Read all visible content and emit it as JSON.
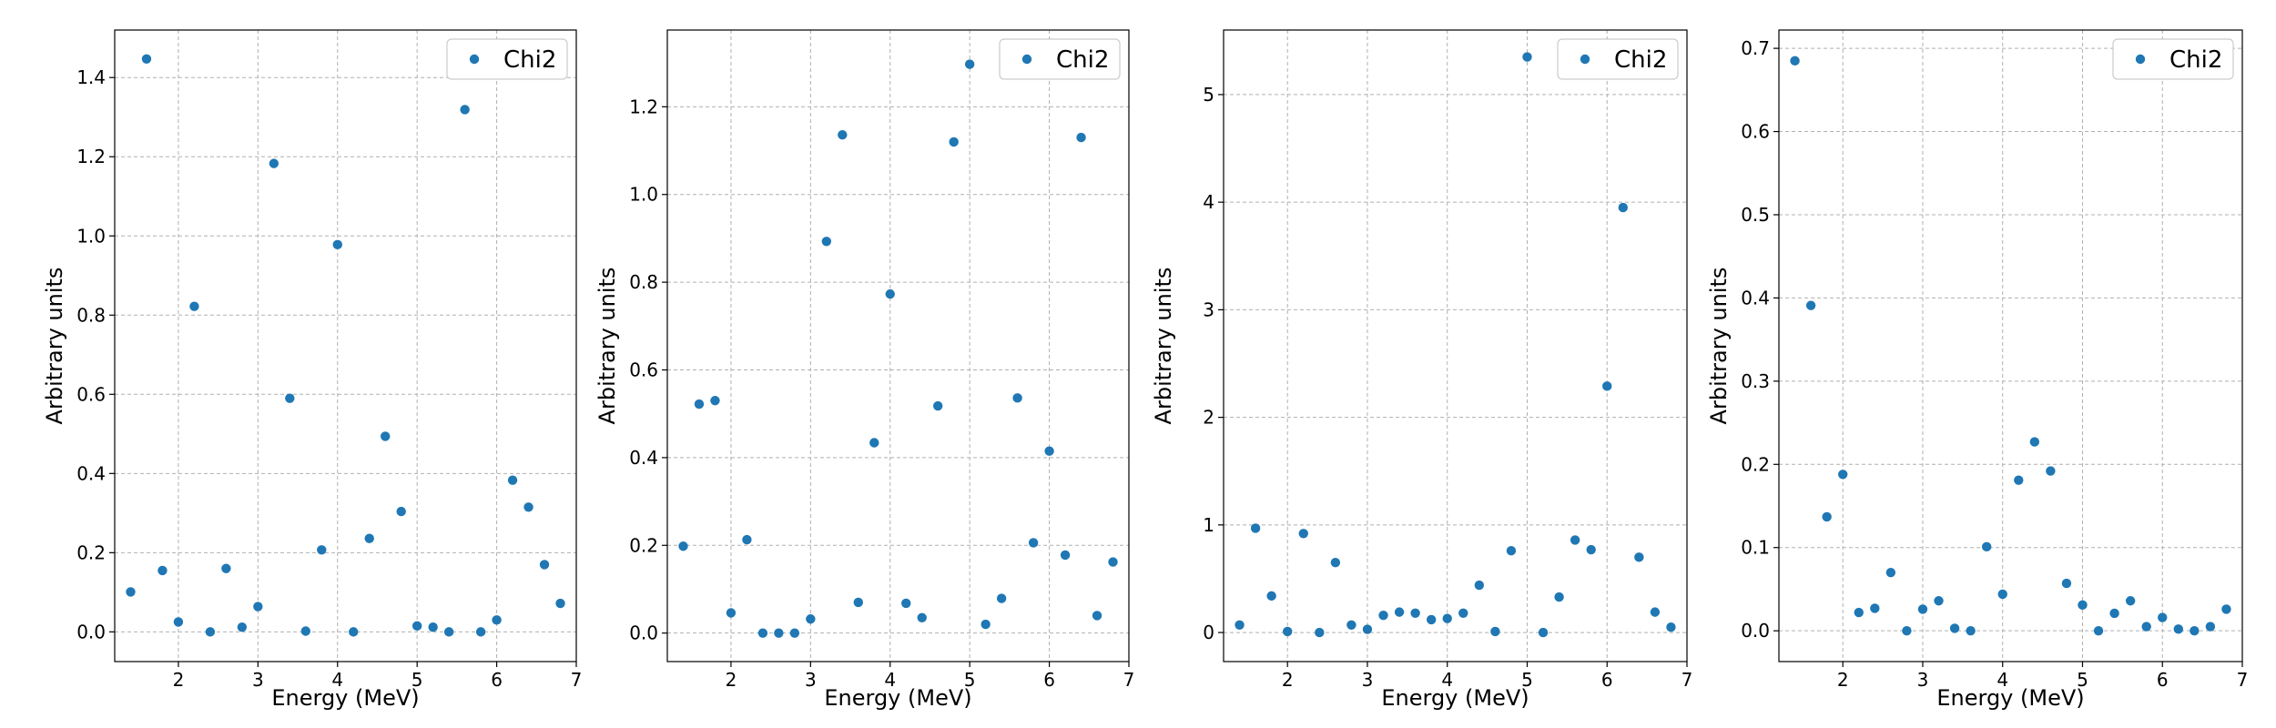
{
  "chart_data": [
    {
      "type": "scatter",
      "xlabel": "Energy (MeV)",
      "ylabel": "Arbitrary units",
      "legend": "top-right",
      "grid": true,
      "xlim": [
        1.2,
        7.0
      ],
      "ylim": [
        -0.075,
        1.52
      ],
      "xticks": [
        2,
        3,
        4,
        5,
        6,
        7
      ],
      "yticks": [
        0.0,
        0.2,
        0.4,
        0.6,
        0.8,
        1.0,
        1.2,
        1.4
      ],
      "ytick_labels": [
        "0.0",
        "0.2",
        "0.4",
        "0.6",
        "0.8",
        "1.0",
        "1.2",
        "1.4"
      ],
      "series": [
        {
          "name": "Chi2",
          "color": "#1f77b4",
          "x": [
            1.4,
            1.6,
            1.8,
            2.0,
            2.2,
            2.4,
            2.6,
            2.8,
            3.0,
            3.2,
            3.4,
            3.6,
            3.8,
            4.0,
            4.2,
            4.4,
            4.6,
            4.8,
            5.0,
            5.2,
            5.4,
            5.6,
            5.8,
            6.0,
            6.2,
            6.4,
            6.6,
            6.8
          ],
          "y": [
            0.101,
            1.447,
            0.155,
            0.025,
            0.822,
            0.0,
            0.16,
            0.012,
            0.064,
            1.183,
            0.59,
            0.002,
            0.207,
            0.978,
            0.0,
            0.236,
            0.494,
            0.304,
            0.015,
            0.012,
            0.0,
            1.319,
            0.0,
            0.03,
            0.383,
            0.315,
            0.17,
            0.072
          ]
        }
      ]
    },
    {
      "type": "scatter",
      "xlabel": "Energy (MeV)",
      "ylabel": "Arbitrary units",
      "legend": "top-right",
      "grid": true,
      "xlim": [
        1.2,
        7.0
      ],
      "ylim": [
        -0.065,
        1.375
      ],
      "xticks": [
        2,
        3,
        4,
        5,
        6,
        7
      ],
      "yticks": [
        0.0,
        0.2,
        0.4,
        0.6,
        0.8,
        1.0,
        1.2
      ],
      "ytick_labels": [
        "0.0",
        "0.2",
        "0.4",
        "0.6",
        "0.8",
        "1.0",
        "1.2"
      ],
      "series": [
        {
          "name": "Chi2",
          "color": "#1f77b4",
          "x": [
            1.4,
            1.6,
            1.8,
            2.0,
            2.2,
            2.4,
            2.6,
            2.8,
            3.0,
            3.2,
            3.4,
            3.6,
            3.8,
            4.0,
            4.2,
            4.4,
            4.6,
            4.8,
            5.0,
            5.2,
            5.4,
            5.6,
            5.8,
            6.0,
            6.2,
            6.4,
            6.6,
            6.8
          ],
          "y": [
            0.198,
            0.522,
            0.53,
            0.046,
            0.213,
            0.0,
            0.0,
            0.0,
            0.032,
            0.893,
            1.136,
            0.07,
            0.434,
            0.773,
            0.068,
            0.035,
            0.518,
            1.12,
            1.297,
            0.02,
            0.079,
            0.536,
            0.206,
            0.415,
            0.178,
            1.13,
            0.04,
            0.162
          ]
        }
      ]
    },
    {
      "type": "scatter",
      "xlabel": "Energy (MeV)",
      "ylabel": "Arbitrary units",
      "legend": "top-right",
      "grid": true,
      "xlim": [
        1.2,
        7.0
      ],
      "ylim": [
        -0.27,
        5.6
      ],
      "xticks": [
        2,
        3,
        4,
        5,
        6,
        7
      ],
      "yticks": [
        0,
        1,
        2,
        3,
        4,
        5
      ],
      "ytick_labels": [
        "0",
        "1",
        "2",
        "3",
        "4",
        "5"
      ],
      "series": [
        {
          "name": "Chi2",
          "color": "#1f77b4",
          "x": [
            1.4,
            1.6,
            1.8,
            2.0,
            2.2,
            2.4,
            2.6,
            2.8,
            3.0,
            3.2,
            3.4,
            3.6,
            3.8,
            4.0,
            4.2,
            4.4,
            4.6,
            4.8,
            5.0,
            5.2,
            5.4,
            5.6,
            5.8,
            6.0,
            6.2,
            6.4,
            6.6,
            6.8
          ],
          "y": [
            0.07,
            0.97,
            0.34,
            0.01,
            0.92,
            0.0,
            0.65,
            0.07,
            0.03,
            0.16,
            0.19,
            0.18,
            0.12,
            0.13,
            0.18,
            0.44,
            0.01,
            0.76,
            5.35,
            0.0,
            0.33,
            0.86,
            0.77,
            2.29,
            3.95,
            0.7,
            0.19,
            0.05
          ]
        }
      ]
    },
    {
      "type": "scatter",
      "xlabel": "Energy (MeV)",
      "ylabel": "Arbitrary units",
      "legend": "top-right",
      "grid": true,
      "xlim": [
        1.2,
        7.0
      ],
      "ylim": [
        -0.037,
        0.722
      ],
      "xticks": [
        2,
        3,
        4,
        5,
        6,
        7
      ],
      "yticks": [
        0.0,
        0.1,
        0.2,
        0.3,
        0.4,
        0.5,
        0.6,
        0.7
      ],
      "ytick_labels": [
        "0.0",
        "0.1",
        "0.2",
        "0.3",
        "0.4",
        "0.5",
        "0.6",
        "0.7"
      ],
      "series": [
        {
          "name": "Chi2",
          "color": "#1f77b4",
          "x": [
            1.4,
            1.6,
            1.8,
            2.0,
            2.2,
            2.4,
            2.6,
            2.8,
            3.0,
            3.2,
            3.4,
            3.6,
            3.8,
            4.0,
            4.2,
            4.4,
            4.6,
            4.8,
            5.0,
            5.2,
            5.4,
            5.6,
            5.8,
            6.0,
            6.2,
            6.4,
            6.6,
            6.8
          ],
          "y": [
            0.685,
            0.391,
            0.137,
            0.188,
            0.022,
            0.027,
            0.07,
            0.0,
            0.026,
            0.036,
            0.003,
            0.0,
            0.101,
            0.044,
            0.181,
            0.227,
            0.192,
            0.057,
            0.031,
            0.0,
            0.021,
            0.036,
            0.005,
            0.016,
            0.002,
            0.0,
            0.005,
            0.026
          ]
        }
      ]
    }
  ]
}
